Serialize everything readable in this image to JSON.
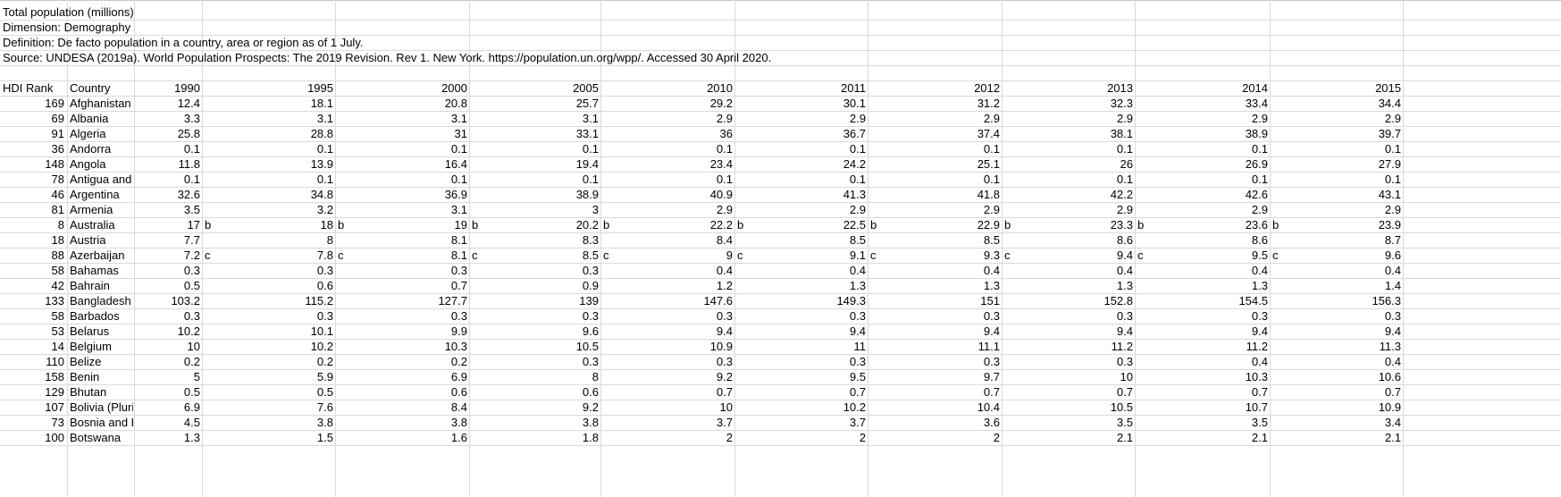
{
  "meta_lines": [
    "Total population (millions)",
    "Dimension: Demography",
    "Definition: De facto population in a country, area or region as of 1 July.",
    "Source: UNDESA (2019a). World Population Prospects: The 2019 Revision. Rev 1. New York. https://population.un.org/wpp/. Accessed 30 April 2020."
  ],
  "headers": [
    "HDI Rank",
    "Country",
    "1990",
    "1995",
    "2000",
    "2005",
    "2010",
    "2011",
    "2012",
    "2013",
    "2014",
    "2015"
  ],
  "rows": [
    {
      "rank": "169",
      "country": "Afghanistan",
      "values": [
        "12.4",
        "18.1",
        "20.8",
        "25.7",
        "29.2",
        "30.1",
        "31.2",
        "32.3",
        "33.4",
        "34.4"
      ],
      "notes": [
        "",
        "",
        "",
        "",
        "",
        "",
        "",
        "",
        "",
        ""
      ]
    },
    {
      "rank": "69",
      "country": "Albania",
      "values": [
        "3.3",
        "3.1",
        "3.1",
        "3.1",
        "2.9",
        "2.9",
        "2.9",
        "2.9",
        "2.9",
        "2.9"
      ],
      "notes": [
        "",
        "",
        "",
        "",
        "",
        "",
        "",
        "",
        "",
        ""
      ]
    },
    {
      "rank": "91",
      "country": "Algeria",
      "values": [
        "25.8",
        "28.8",
        "31",
        "33.1",
        "36",
        "36.7",
        "37.4",
        "38.1",
        "38.9",
        "39.7"
      ],
      "notes": [
        "",
        "",
        "",
        "",
        "",
        "",
        "",
        "",
        "",
        ""
      ]
    },
    {
      "rank": "36",
      "country": "Andorra",
      "values": [
        "0.1",
        "0.1",
        "0.1",
        "0.1",
        "0.1",
        "0.1",
        "0.1",
        "0.1",
        "0.1",
        "0.1"
      ],
      "notes": [
        "",
        "",
        "",
        "",
        "",
        "",
        "",
        "",
        "",
        ""
      ]
    },
    {
      "rank": "148",
      "country": "Angola",
      "values": [
        "11.8",
        "13.9",
        "16.4",
        "19.4",
        "23.4",
        "24.2",
        "25.1",
        "26",
        "26.9",
        "27.9"
      ],
      "notes": [
        "",
        "",
        "",
        "",
        "",
        "",
        "",
        "",
        "",
        ""
      ]
    },
    {
      "rank": "78",
      "country": "Antigua and",
      "values": [
        "0.1",
        "0.1",
        "0.1",
        "0.1",
        "0.1",
        "0.1",
        "0.1",
        "0.1",
        "0.1",
        "0.1"
      ],
      "notes": [
        "",
        "",
        "",
        "",
        "",
        "",
        "",
        "",
        "",
        ""
      ]
    },
    {
      "rank": "46",
      "country": "Argentina",
      "values": [
        "32.6",
        "34.8",
        "36.9",
        "38.9",
        "40.9",
        "41.3",
        "41.8",
        "42.2",
        "42.6",
        "43.1"
      ],
      "notes": [
        "",
        "",
        "",
        "",
        "",
        "",
        "",
        "",
        "",
        ""
      ]
    },
    {
      "rank": "81",
      "country": "Armenia",
      "values": [
        "3.5",
        "3.2",
        "3.1",
        "3",
        "2.9",
        "2.9",
        "2.9",
        "2.9",
        "2.9",
        "2.9"
      ],
      "notes": [
        "",
        "",
        "",
        "",
        "",
        "",
        "",
        "",
        "",
        ""
      ]
    },
    {
      "rank": "8",
      "country": "Australia",
      "values": [
        "17",
        "18",
        "19",
        "20.2",
        "22.2",
        "22.5",
        "22.9",
        "23.3",
        "23.6",
        "23.9"
      ],
      "notes": [
        "b",
        "b",
        "b",
        "b",
        "b",
        "b",
        "b",
        "b",
        "b",
        ""
      ]
    },
    {
      "rank": "18",
      "country": "Austria",
      "values": [
        "7.7",
        "8",
        "8.1",
        "8.3",
        "8.4",
        "8.5",
        "8.5",
        "8.6",
        "8.6",
        "8.7"
      ],
      "notes": [
        "",
        "",
        "",
        "",
        "",
        "",
        "",
        "",
        "",
        ""
      ]
    },
    {
      "rank": "88",
      "country": "Azerbaijan",
      "values": [
        "7.2",
        "7.8",
        "8.1",
        "8.5",
        "9",
        "9.1",
        "9.3",
        "9.4",
        "9.5",
        "9.6"
      ],
      "notes": [
        "c",
        "c",
        "c",
        "c",
        "c",
        "c",
        "c",
        "c",
        "c",
        ""
      ]
    },
    {
      "rank": "58",
      "country": "Bahamas",
      "values": [
        "0.3",
        "0.3",
        "0.3",
        "0.3",
        "0.4",
        "0.4",
        "0.4",
        "0.4",
        "0.4",
        "0.4"
      ],
      "notes": [
        "",
        "",
        "",
        "",
        "",
        "",
        "",
        "",
        "",
        ""
      ]
    },
    {
      "rank": "42",
      "country": "Bahrain",
      "values": [
        "0.5",
        "0.6",
        "0.7",
        "0.9",
        "1.2",
        "1.3",
        "1.3",
        "1.3",
        "1.3",
        "1.4"
      ],
      "notes": [
        "",
        "",
        "",
        "",
        "",
        "",
        "",
        "",
        "",
        ""
      ]
    },
    {
      "rank": "133",
      "country": "Bangladesh",
      "values": [
        "103.2",
        "115.2",
        "127.7",
        "139",
        "147.6",
        "149.3",
        "151",
        "152.8",
        "154.5",
        "156.3"
      ],
      "notes": [
        "",
        "",
        "",
        "",
        "",
        "",
        "",
        "",
        "",
        ""
      ]
    },
    {
      "rank": "58",
      "country": "Barbados",
      "values": [
        "0.3",
        "0.3",
        "0.3",
        "0.3",
        "0.3",
        "0.3",
        "0.3",
        "0.3",
        "0.3",
        "0.3"
      ],
      "notes": [
        "",
        "",
        "",
        "",
        "",
        "",
        "",
        "",
        "",
        ""
      ]
    },
    {
      "rank": "53",
      "country": "Belarus",
      "values": [
        "10.2",
        "10.1",
        "9.9",
        "9.6",
        "9.4",
        "9.4",
        "9.4",
        "9.4",
        "9.4",
        "9.4"
      ],
      "notes": [
        "",
        "",
        "",
        "",
        "",
        "",
        "",
        "",
        "",
        ""
      ]
    },
    {
      "rank": "14",
      "country": "Belgium",
      "values": [
        "10",
        "10.2",
        "10.3",
        "10.5",
        "10.9",
        "11",
        "11.1",
        "11.2",
        "11.2",
        "11.3"
      ],
      "notes": [
        "",
        "",
        "",
        "",
        "",
        "",
        "",
        "",
        "",
        ""
      ]
    },
    {
      "rank": "110",
      "country": "Belize",
      "values": [
        "0.2",
        "0.2",
        "0.2",
        "0.3",
        "0.3",
        "0.3",
        "0.3",
        "0.3",
        "0.4",
        "0.4"
      ],
      "notes": [
        "",
        "",
        "",
        "",
        "",
        "",
        "",
        "",
        "",
        ""
      ]
    },
    {
      "rank": "158",
      "country": "Benin",
      "values": [
        "5",
        "5.9",
        "6.9",
        "8",
        "9.2",
        "9.5",
        "9.7",
        "10",
        "10.3",
        "10.6"
      ],
      "notes": [
        "",
        "",
        "",
        "",
        "",
        "",
        "",
        "",
        "",
        ""
      ]
    },
    {
      "rank": "129",
      "country": "Bhutan",
      "values": [
        "0.5",
        "0.5",
        "0.6",
        "0.6",
        "0.7",
        "0.7",
        "0.7",
        "0.7",
        "0.7",
        "0.7"
      ],
      "notes": [
        "",
        "",
        "",
        "",
        "",
        "",
        "",
        "",
        "",
        ""
      ]
    },
    {
      "rank": "107",
      "country": "Bolivia (Pluri",
      "values": [
        "6.9",
        "7.6",
        "8.4",
        "9.2",
        "10",
        "10.2",
        "10.4",
        "10.5",
        "10.7",
        "10.9"
      ],
      "notes": [
        "",
        "",
        "",
        "",
        "",
        "",
        "",
        "",
        "",
        ""
      ]
    },
    {
      "rank": "73",
      "country": "Bosnia and H",
      "values": [
        "4.5",
        "3.8",
        "3.8",
        "3.8",
        "3.7",
        "3.7",
        "3.6",
        "3.5",
        "3.5",
        "3.4"
      ],
      "notes": [
        "",
        "",
        "",
        "",
        "",
        "",
        "",
        "",
        "",
        ""
      ]
    },
    {
      "rank": "100",
      "country": "Botswana",
      "values": [
        "1.3",
        "1.5",
        "1.6",
        "1.8",
        "2",
        "2",
        "2",
        "2.1",
        "2.1",
        "2.1"
      ],
      "notes": [
        "",
        "",
        "",
        "",
        "",
        "",
        "",
        "",
        "",
        ""
      ]
    }
  ]
}
